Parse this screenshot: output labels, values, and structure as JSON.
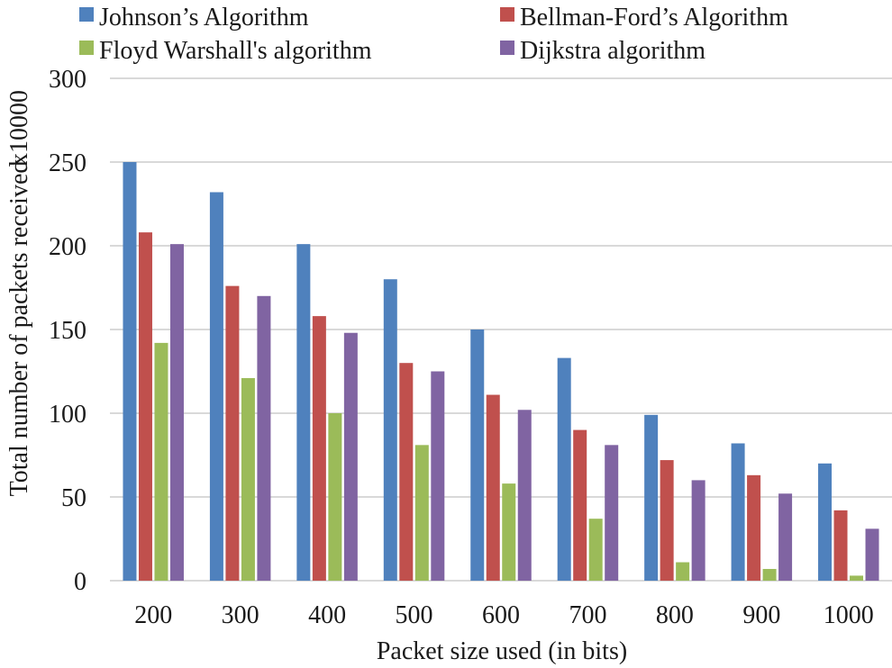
{
  "chart_data": {
    "type": "bar",
    "title": "",
    "xlabel": "Packet size used (in bits)",
    "ylabel": "Total number of packets received",
    "ylabel_multiplier": "x10000",
    "ylim": [
      0,
      300
    ],
    "yticks": [
      0,
      50,
      100,
      150,
      200,
      250,
      300
    ],
    "grid": true,
    "legend_position": "top",
    "categories": [
      "200",
      "300",
      "400",
      "500",
      "600",
      "700",
      "800",
      "900",
      "1000"
    ],
    "series": [
      {
        "name": "Johnson’s Algorithm",
        "color": "#4f81bd",
        "values": [
          250,
          232,
          201,
          180,
          150,
          133,
          99,
          82,
          70
        ]
      },
      {
        "name": "Bellman-Ford’s Algorithm",
        "color": "#c0504d",
        "values": [
          208,
          176,
          158,
          130,
          111,
          90,
          72,
          63,
          42
        ]
      },
      {
        "name": "Floyd Warshall's algorithm",
        "color": "#9bbb59",
        "values": [
          142,
          121,
          100,
          81,
          58,
          37,
          11,
          7,
          3
        ]
      },
      {
        "name": "Dijkstra algorithm",
        "color": "#8064a2",
        "values": [
          201,
          170,
          148,
          125,
          102,
          81,
          60,
          52,
          31
        ]
      }
    ]
  }
}
